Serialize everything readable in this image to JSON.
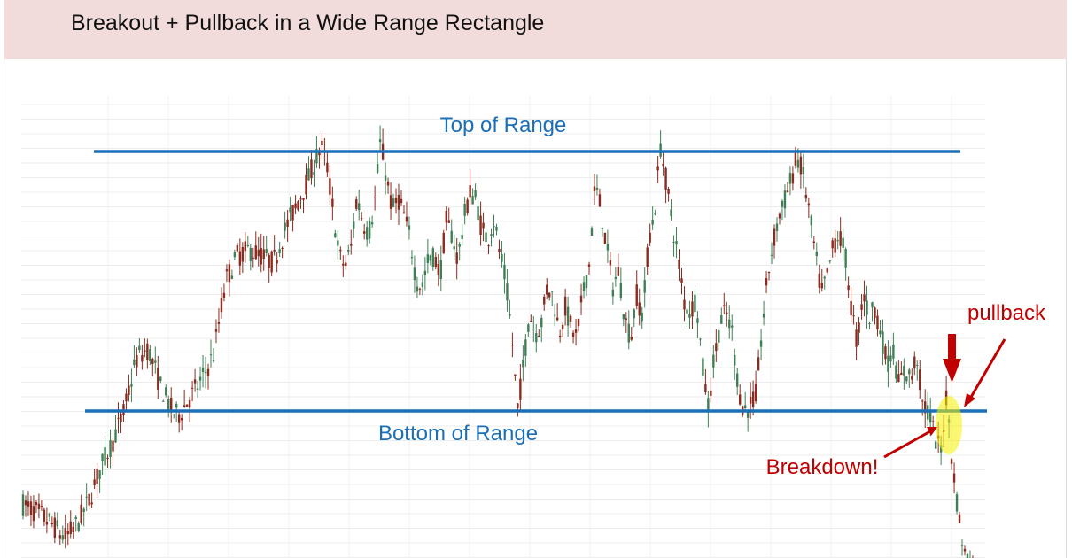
{
  "slide": {
    "title": "Breakout + Pullback in a Wide Range Rectangle"
  },
  "colors": {
    "background": "#ffffff",
    "title_bar": "#f2dcdb",
    "range_line": "#1a6fb6",
    "annotation": "#c00000",
    "highlight": "#f5f000",
    "candle_up": "#3f7f55",
    "candle_down": "#8b2a1e",
    "grid": "#ececec"
  },
  "chart_data": {
    "type": "candlestick",
    "title": "",
    "grid": true,
    "range_lines": [
      {
        "name": "top",
        "label": "Top of Range",
        "level": 100
      },
      {
        "name": "bottom",
        "label": "Bottom of Range",
        "level": 0
      }
    ],
    "annotations": [
      {
        "text": "pullback",
        "kind": "arrow"
      },
      {
        "text": "Breakdown!",
        "kind": "arrow"
      },
      {
        "kind": "down-arrow-marker"
      },
      {
        "kind": "highlight-ellipse"
      }
    ],
    "price_path_percent_of_range": [
      [
        0,
        -36
      ],
      [
        3,
        -40
      ],
      [
        5,
        -44
      ],
      [
        7,
        -49
      ],
      [
        9,
        -44
      ],
      [
        11,
        -35
      ],
      [
        13,
        -22
      ],
      [
        15,
        -12
      ],
      [
        17,
        0
      ],
      [
        19,
        20
      ],
      [
        21,
        24
      ],
      [
        23,
        10
      ],
      [
        25,
        0
      ],
      [
        26,
        -2
      ],
      [
        28,
        5
      ],
      [
        30,
        12
      ],
      [
        32,
        22
      ],
      [
        34,
        50
      ],
      [
        36,
        60
      ],
      [
        38,
        62
      ],
      [
        40,
        60
      ],
      [
        42,
        57
      ],
      [
        44,
        70
      ],
      [
        46,
        80
      ],
      [
        48,
        90
      ],
      [
        50,
        102
      ],
      [
        51,
        95
      ],
      [
        52,
        78
      ],
      [
        53,
        60
      ],
      [
        54,
        56
      ],
      [
        55,
        62
      ],
      [
        56,
        82
      ],
      [
        57,
        74
      ],
      [
        58,
        68
      ],
      [
        59,
        80
      ],
      [
        60,
        104
      ],
      [
        61,
        90
      ],
      [
        62,
        77
      ],
      [
        63,
        82
      ],
      [
        64,
        75
      ],
      [
        65,
        66
      ],
      [
        66,
        50
      ],
      [
        67,
        48
      ],
      [
        68,
        58
      ],
      [
        69,
        60
      ],
      [
        70,
        52
      ],
      [
        71,
        73
      ],
      [
        72,
        68
      ],
      [
        73,
        58
      ],
      [
        74,
        74
      ],
      [
        75,
        84
      ],
      [
        76,
        82
      ],
      [
        77,
        70
      ],
      [
        78,
        66
      ],
      [
        79,
        74
      ],
      [
        80,
        61
      ],
      [
        81,
        50
      ],
      [
        82,
        30
      ],
      [
        83,
        0
      ],
      [
        84,
        18
      ],
      [
        85,
        38
      ],
      [
        86,
        30
      ],
      [
        87,
        34
      ],
      [
        88,
        48
      ],
      [
        89,
        44
      ],
      [
        90,
        30
      ],
      [
        91,
        40
      ],
      [
        92,
        32
      ],
      [
        93,
        28
      ],
      [
        94,
        46
      ],
      [
        95,
        56
      ],
      [
        96,
        87
      ],
      [
        97,
        78
      ],
      [
        98,
        62
      ],
      [
        99,
        48
      ],
      [
        100,
        54
      ],
      [
        101,
        36
      ],
      [
        102,
        28
      ],
      [
        103,
        45
      ],
      [
        104,
        36
      ],
      [
        105,
        66
      ],
      [
        106,
        76
      ],
      [
        107,
        102
      ],
      [
        108,
        88
      ],
      [
        109,
        72
      ],
      [
        110,
        58
      ],
      [
        111,
        42
      ],
      [
        112,
        38
      ],
      [
        113,
        44
      ],
      [
        114,
        18
      ],
      [
        115,
        2
      ],
      [
        116,
        20
      ],
      [
        117,
        34
      ],
      [
        118,
        38
      ],
      [
        119,
        30
      ],
      [
        120,
        10
      ],
      [
        121,
        0
      ],
      [
        122,
        2
      ],
      [
        123,
        6
      ],
      [
        124,
        30
      ],
      [
        125,
        52
      ],
      [
        126,
        66
      ],
      [
        127,
        76
      ],
      [
        128,
        82
      ],
      [
        129,
        90
      ],
      [
        130,
        98
      ],
      [
        131,
        90
      ],
      [
        132,
        76
      ],
      [
        133,
        60
      ],
      [
        134,
        45
      ],
      [
        135,
        52
      ],
      [
        136,
        64
      ],
      [
        137,
        68
      ],
      [
        138,
        60
      ],
      [
        139,
        40
      ],
      [
        140,
        26
      ],
      [
        141,
        46
      ],
      [
        142,
        36
      ],
      [
        143,
        40
      ],
      [
        144,
        30
      ],
      [
        145,
        18
      ],
      [
        146,
        24
      ],
      [
        147,
        10
      ],
      [
        148,
        16
      ],
      [
        149,
        12
      ],
      [
        150,
        22
      ],
      [
        151,
        2
      ],
      [
        152,
        0
      ],
      [
        153,
        -10
      ],
      [
        154,
        -16
      ],
      [
        155,
        6
      ],
      [
        156,
        -20
      ],
      [
        157,
        -40
      ],
      [
        158,
        -55
      ],
      [
        159,
        -58
      ]
    ]
  }
}
